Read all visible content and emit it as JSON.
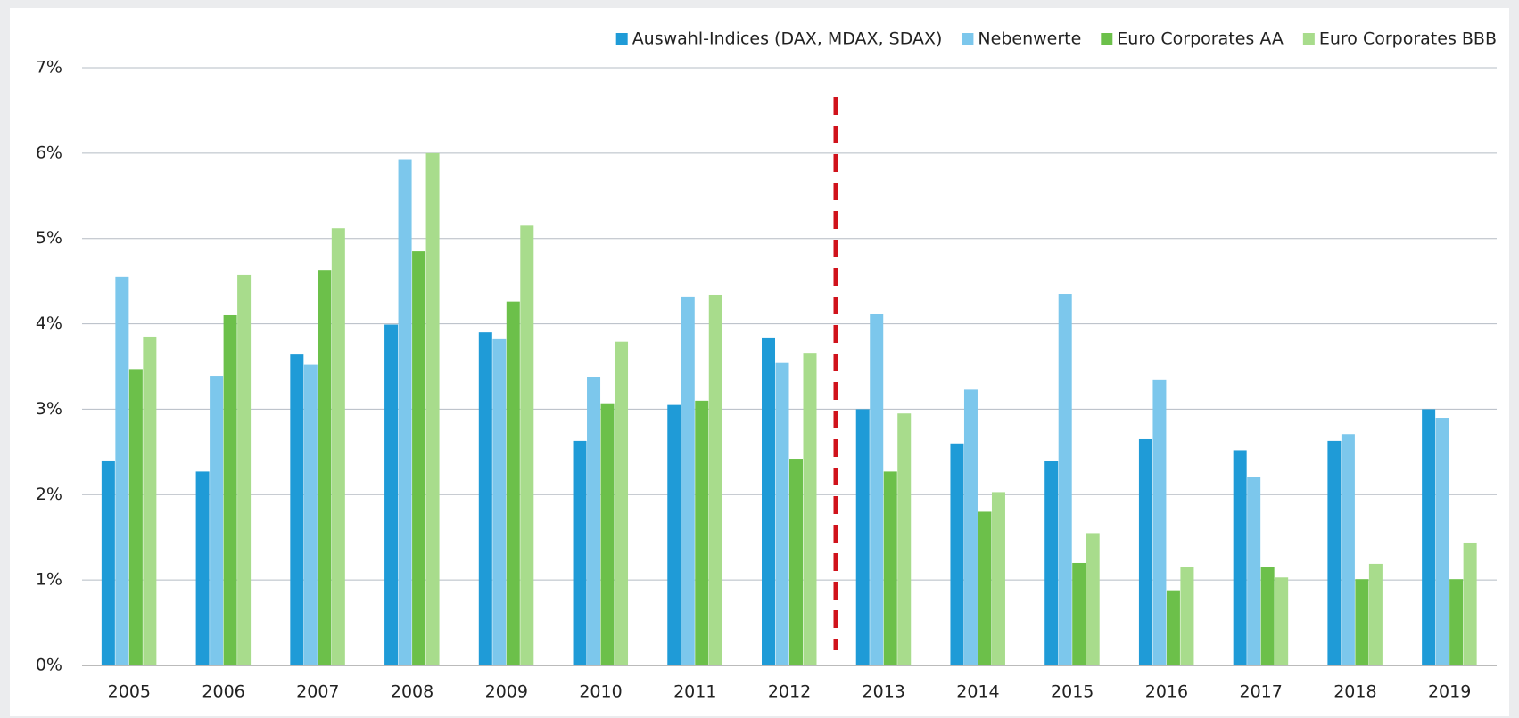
{
  "chart_data": {
    "type": "bar",
    "categories": [
      "2005",
      "2006",
      "2007",
      "2008",
      "2009",
      "2010",
      "2011",
      "2012",
      "2013",
      "2014",
      "2015",
      "2016",
      "2017",
      "2018",
      "2019"
    ],
    "series": [
      {
        "name": "Auswahl-Indices (DAX, MDAX, SDAX)",
        "color": "#1f9bd7",
        "values": [
          2.4,
          2.27,
          3.65,
          3.99,
          3.9,
          2.63,
          3.05,
          3.84,
          3.0,
          2.6,
          2.39,
          2.65,
          2.52,
          2.63,
          3.0
        ]
      },
      {
        "name": "Nebenwerte",
        "color": "#7cc7ec",
        "values": [
          4.55,
          3.39,
          3.52,
          5.92,
          3.83,
          3.38,
          4.32,
          3.55,
          4.12,
          3.23,
          4.35,
          3.34,
          2.21,
          2.71,
          2.9
        ]
      },
      {
        "name": "Euro Corporates AA",
        "color": "#6cc04a",
        "values": [
          3.47,
          4.1,
          4.63,
          4.85,
          4.26,
          3.07,
          3.1,
          2.42,
          2.27,
          1.8,
          1.2,
          0.88,
          1.15,
          1.01,
          1.01
        ]
      },
      {
        "name": "Euro Corporates BBB",
        "color": "#a8dc8c",
        "values": [
          3.85,
          4.57,
          5.12,
          6.0,
          5.15,
          3.79,
          4.34,
          3.66,
          2.95,
          2.03,
          1.55,
          1.15,
          1.03,
          1.19,
          1.44
        ]
      }
    ],
    "ylim": [
      0,
      7
    ],
    "yticks": [
      {
        "value": 0,
        "label": "0%"
      },
      {
        "value": 1,
        "label": "1%"
      },
      {
        "value": 2,
        "label": "2%"
      },
      {
        "value": 3,
        "label": "3%"
      },
      {
        "value": 4,
        "label": "4%"
      },
      {
        "value": 5,
        "label": "5%"
      },
      {
        "value": 6,
        "label": "6%"
      },
      {
        "value": 7,
        "label": "7%"
      }
    ],
    "grid": true,
    "legend": "top-right"
  }
}
